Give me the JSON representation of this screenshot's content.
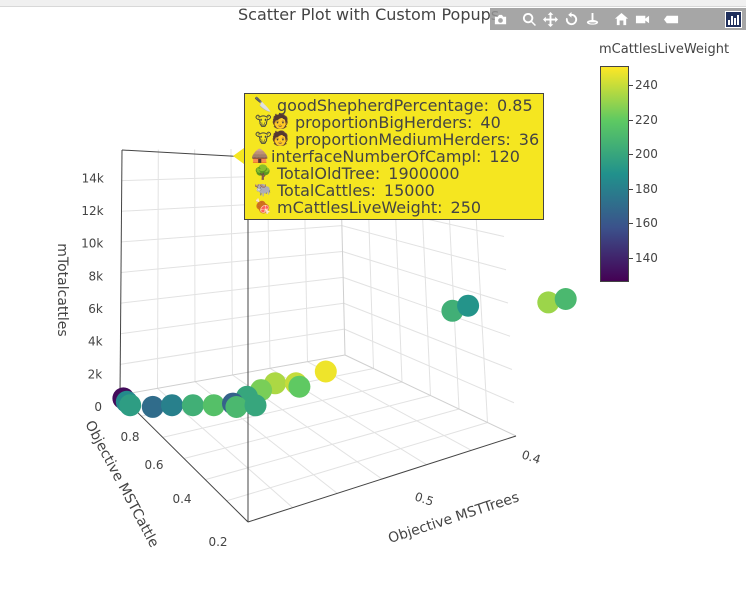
{
  "chart_title": "Scatter Plot with Custom Popups",
  "modebar": {
    "buttons": [
      "camera-icon",
      "zoom-icon",
      "pan-icon",
      "orbit-rotation-icon",
      "turntable-rotation-icon",
      "reset-camera-icon",
      "home-icon",
      "video-icon",
      "hover-toggle-icon",
      "plotly-logo-icon"
    ]
  },
  "colorbar": {
    "title": "mCattlesLiveWeight",
    "ticks": [
      "240",
      "220",
      "200",
      "180",
      "160",
      "140"
    ],
    "tick_values": [
      240,
      220,
      200,
      180,
      160,
      140
    ],
    "range": [
      126,
      251
    ],
    "colors": [
      "#440154",
      "#3b528b",
      "#21918c",
      "#5ec962",
      "#fde725"
    ]
  },
  "tooltip": {
    "lines": [
      {
        "icon": "knife-icon",
        "glyph": "🔪",
        "label": "goodShepherdPercentage:",
        "value": "0.85"
      },
      {
        "icon": "cow-herder-icon",
        "glyph": "🐮🧑",
        "label": "proportionBigHerders:",
        "value": "40"
      },
      {
        "icon": "cow-herder-icon",
        "glyph": "🐮🧑",
        "label": "proportionMediumHerders:",
        "value": "36"
      },
      {
        "icon": "hut-icon",
        "glyph": "🛖",
        "label": "interfaceNumberOfCampl:",
        "value": "120"
      },
      {
        "icon": "tree-icon",
        "glyph": "🌳",
        "label": "TotalOldTree:",
        "value": "1900000"
      },
      {
        "icon": "ox-icon",
        "glyph": "🐃",
        "label": "TotalCattles:",
        "value": "15000"
      },
      {
        "icon": "meat-icon",
        "glyph": "🍖",
        "label": "mCattlesLiveWeight:",
        "value": "250"
      }
    ]
  },
  "chart_data": {
    "type": "scatter",
    "title": "Scatter Plot with Custom Popups",
    "axes": {
      "x": {
        "label": "Objective MSTTrees",
        "ticks": [
          "0.4",
          "0.5"
        ]
      },
      "y": {
        "label": "Objective MSTCattle",
        "ticks": [
          "0.8",
          "0.6",
          "0.4",
          "0.2"
        ]
      },
      "z": {
        "label": "mTotalcattles",
        "ticks": [
          "0",
          "2k",
          "4k",
          "6k",
          "8k",
          "10k",
          "12k",
          "14k"
        ]
      }
    },
    "color_variable": "mCattlesLiveWeight",
    "points": [
      {
        "x": 0.42,
        "y": 0.88,
        "z": 15000,
        "color": 250
      },
      {
        "x": 0.25,
        "y": 0.88,
        "z": 0,
        "color": 130
      },
      {
        "x": 0.25,
        "y": 0.86,
        "z": 0,
        "color": 185
      },
      {
        "x": 0.25,
        "y": 0.84,
        "z": 0,
        "color": 195
      },
      {
        "x": 0.26,
        "y": 0.8,
        "z": 0,
        "color": 170
      },
      {
        "x": 0.27,
        "y": 0.78,
        "z": 0,
        "color": 180
      },
      {
        "x": 0.28,
        "y": 0.75,
        "z": 0,
        "color": 205
      },
      {
        "x": 0.29,
        "y": 0.72,
        "z": 0,
        "color": 215
      },
      {
        "x": 0.3,
        "y": 0.7,
        "z": 0,
        "color": 165
      },
      {
        "x": 0.31,
        "y": 0.71,
        "z": 0,
        "color": 200
      },
      {
        "x": 0.32,
        "y": 0.72,
        "z": 0,
        "color": 225
      },
      {
        "x": 0.33,
        "y": 0.73,
        "z": 0,
        "color": 235
      },
      {
        "x": 0.34,
        "y": 0.7,
        "z": 0,
        "color": 240
      },
      {
        "x": 0.34,
        "y": 0.68,
        "z": 0,
        "color": 220
      },
      {
        "x": 0.36,
        "y": 0.71,
        "z": 0,
        "color": 248
      },
      {
        "x": 0.3,
        "y": 0.68,
        "z": 0,
        "color": 210
      },
      {
        "x": 0.31,
        "y": 0.66,
        "z": 0,
        "color": 200
      },
      {
        "x": 0.45,
        "y": 0.8,
        "z": 0,
        "color": 205
      },
      {
        "x": 0.46,
        "y": 0.8,
        "z": 0,
        "color": 190
      },
      {
        "x": 0.5,
        "y": 0.7,
        "z": 0,
        "color": 232
      },
      {
        "x": 0.51,
        "y": 0.69,
        "z": 0,
        "color": 210
      }
    ]
  }
}
